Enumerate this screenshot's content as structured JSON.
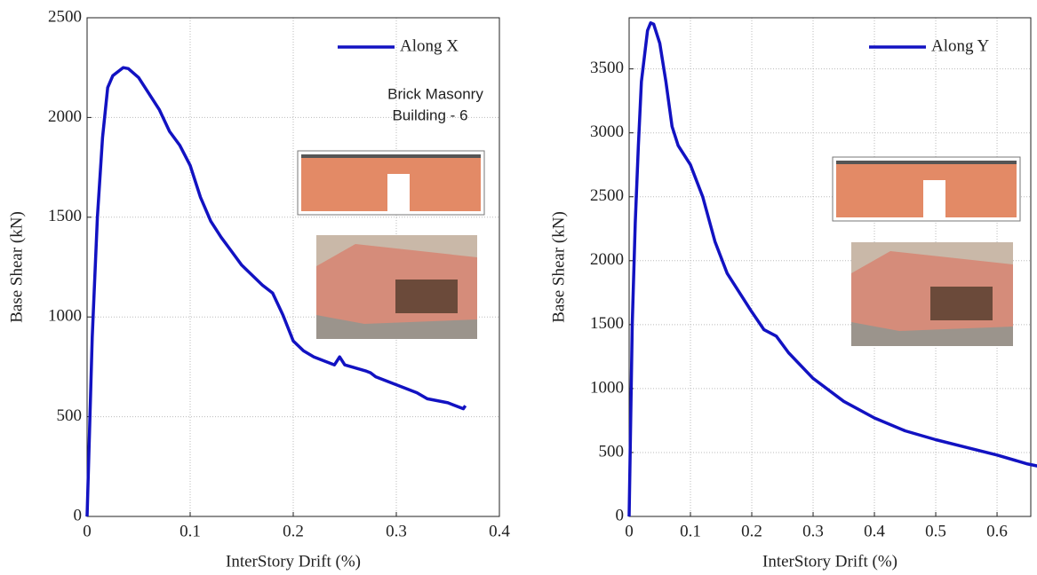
{
  "chart_data": [
    {
      "type": "line",
      "xlabel": "InterStory Drift (%)",
      "ylabel": "Base Shear (kN)",
      "x": [
        0,
        0.005,
        0.01,
        0.015,
        0.02,
        0.025,
        0.03,
        0.035,
        0.04,
        0.05,
        0.06,
        0.07,
        0.08,
        0.09,
        0.1,
        0.11,
        0.12,
        0.13,
        0.14,
        0.15,
        0.16,
        0.17,
        0.18,
        0.19,
        0.2,
        0.21,
        0.22,
        0.24,
        0.245,
        0.25,
        0.27,
        0.275,
        0.28,
        0.3,
        0.31,
        0.32,
        0.33,
        0.35,
        0.365,
        0.367
      ],
      "series": [
        {
          "name": "Along X",
          "color": "#1212c2",
          "values": [
            0,
            900,
            1500,
            1900,
            2150,
            2210,
            2230,
            2250,
            2245,
            2200,
            2120,
            2040,
            1930,
            1860,
            1760,
            1600,
            1480,
            1400,
            1330,
            1260,
            1210,
            1160,
            1120,
            1010,
            880,
            830,
            800,
            760,
            800,
            760,
            730,
            720,
            700,
            660,
            640,
            620,
            590,
            570,
            540,
            555
          ]
        }
      ],
      "xlim": [
        0,
        0.4
      ],
      "xticks": [
        0,
        0.1,
        0.2,
        0.3,
        0.4
      ],
      "ylim": [
        0,
        2500
      ],
      "yticks": [
        0,
        500,
        1000,
        1500,
        2000,
        2500
      ],
      "grid": true,
      "legend": "upper right",
      "annotation": [
        "Brick Masonry",
        "Building - 6"
      ]
    },
    {
      "type": "line",
      "xlabel": "InterStory Drift (%)",
      "ylabel": "Base Shear (kN)",
      "x": [
        0,
        0.005,
        0.01,
        0.015,
        0.02,
        0.03,
        0.035,
        0.04,
        0.05,
        0.06,
        0.07,
        0.08,
        0.1,
        0.12,
        0.14,
        0.16,
        0.18,
        0.2,
        0.22,
        0.24,
        0.26,
        0.3,
        0.35,
        0.4,
        0.45,
        0.5,
        0.55,
        0.6,
        0.65,
        0.67
      ],
      "series": [
        {
          "name": "Along Y",
          "color": "#1212c2",
          "values": [
            0,
            1500,
            2300,
            2900,
            3400,
            3800,
            3860,
            3850,
            3700,
            3400,
            3050,
            2900,
            2750,
            2500,
            2150,
            1900,
            1750,
            1600,
            1460,
            1410,
            1280,
            1080,
            900,
            770,
            670,
            600,
            540,
            480,
            410,
            390
          ]
        }
      ],
      "xlim": [
        0,
        0.655
      ],
      "xticks": [
        0,
        0.1,
        0.2,
        0.3,
        0.4,
        0.5,
        0.6
      ],
      "ylim": [
        0,
        3900
      ],
      "yticks": [
        0,
        500,
        1000,
        1500,
        2000,
        2500,
        3000,
        3500
      ],
      "grid": true,
      "legend": "upper right"
    }
  ]
}
